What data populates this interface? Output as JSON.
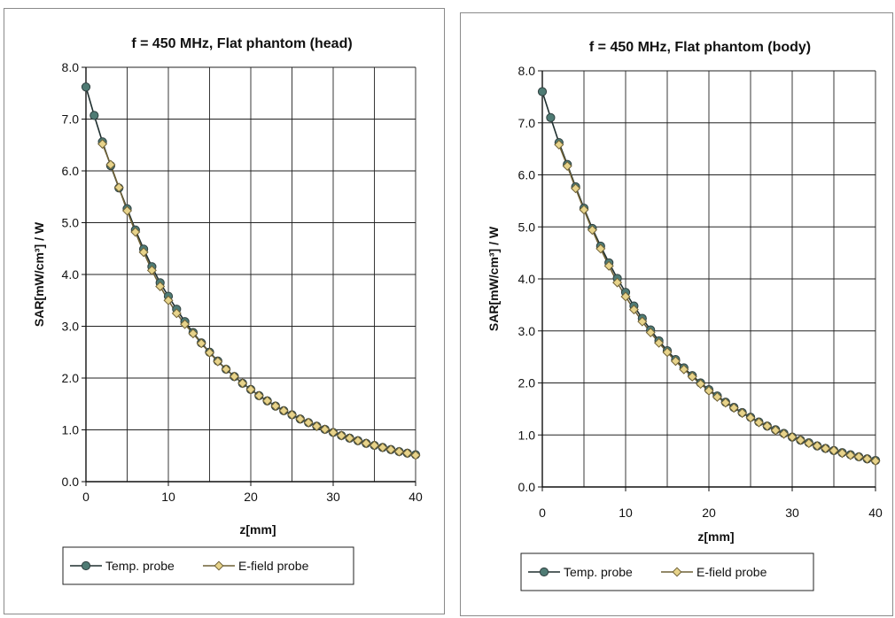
{
  "chart_data": [
    {
      "type": "line",
      "title": "f = 450 MHz, Flat phantom (head)",
      "xlabel": "z[mm]",
      "ylabel": "SAR[mW/cm³] / W",
      "xlim": [
        0,
        40
      ],
      "ylim": [
        0,
        8
      ],
      "xticks": [
        "0",
        "10",
        "20",
        "30",
        "40"
      ],
      "yticks": [
        "0.0",
        "1.0",
        "2.0",
        "3.0",
        "4.0",
        "5.0",
        "6.0",
        "7.0",
        "8.0"
      ],
      "grid": true,
      "legend_position": "bottom",
      "series": [
        {
          "name": "Temp. probe",
          "marker": "circle",
          "color": "#4f7b74",
          "x": [
            0,
            1,
            2,
            3,
            4,
            5,
            6,
            7,
            8,
            9,
            10,
            11,
            12,
            13,
            14,
            15,
            16,
            17,
            18,
            19,
            20,
            21,
            22,
            23,
            24,
            25,
            26,
            27,
            28,
            29,
            30,
            31,
            32,
            33,
            34,
            35,
            36,
            37,
            38,
            39,
            40
          ],
          "values": [
            7.62,
            7.07,
            6.56,
            6.1,
            5.67,
            5.27,
            4.86,
            4.49,
            4.15,
            3.84,
            3.58,
            3.33,
            3.09,
            2.88,
            2.68,
            2.5,
            2.33,
            2.17,
            2.03,
            1.9,
            1.78,
            1.66,
            1.56,
            1.46,
            1.37,
            1.29,
            1.21,
            1.14,
            1.07,
            1.01,
            0.95,
            0.89,
            0.84,
            0.79,
            0.74,
            0.7,
            0.66,
            0.62,
            0.58,
            0.55,
            0.52
          ]
        },
        {
          "name": "E-field probe",
          "marker": "diamond",
          "color": "#e7d38a",
          "x": [
            2,
            3,
            4,
            5,
            6,
            7,
            8,
            9,
            10,
            11,
            12,
            13,
            14,
            15,
            16,
            17,
            18,
            19,
            20,
            21,
            22,
            23,
            24,
            25,
            26,
            27,
            28,
            29,
            30,
            31,
            32,
            33,
            34,
            35,
            36,
            37,
            38,
            39,
            40
          ],
          "values": [
            6.52,
            6.12,
            5.68,
            5.23,
            4.82,
            4.43,
            4.08,
            3.77,
            3.5,
            3.25,
            3.04,
            2.86,
            2.67,
            2.49,
            2.32,
            2.17,
            2.03,
            1.9,
            1.78,
            1.66,
            1.56,
            1.46,
            1.37,
            1.29,
            1.21,
            1.14,
            1.07,
            1.01,
            0.95,
            0.89,
            0.84,
            0.79,
            0.74,
            0.7,
            0.66,
            0.62,
            0.58,
            0.55,
            0.51
          ]
        }
      ]
    },
    {
      "type": "line",
      "title": "f = 450 MHz, Flat phantom (body)",
      "xlabel": "z[mm]",
      "ylabel": "SAR[mW/cm³] / W",
      "xlim": [
        0,
        40
      ],
      "ylim": [
        0,
        8
      ],
      "xticks": [
        "0",
        "10",
        "20",
        "30",
        "40"
      ],
      "yticks": [
        "0.0",
        "1.0",
        "2.0",
        "3.0",
        "4.0",
        "5.0",
        "6.0",
        "7.0",
        "8.0"
      ],
      "grid": true,
      "legend_position": "bottom",
      "series": [
        {
          "name": "Temp. probe",
          "marker": "circle",
          "color": "#4f7b74",
          "x": [
            0,
            1,
            2,
            3,
            4,
            5,
            6,
            7,
            8,
            9,
            10,
            11,
            12,
            13,
            14,
            15,
            16,
            17,
            18,
            19,
            20,
            21,
            22,
            23,
            24,
            25,
            26,
            27,
            28,
            29,
            30,
            31,
            32,
            33,
            34,
            35,
            36,
            37,
            38,
            39,
            40
          ],
          "values": [
            7.6,
            7.1,
            6.62,
            6.2,
            5.77,
            5.36,
            4.97,
            4.63,
            4.31,
            4.01,
            3.74,
            3.48,
            3.24,
            3.02,
            2.81,
            2.62,
            2.45,
            2.29,
            2.14,
            2.0,
            1.87,
            1.75,
            1.63,
            1.53,
            1.43,
            1.34,
            1.25,
            1.17,
            1.1,
            1.03,
            0.96,
            0.9,
            0.85,
            0.79,
            0.74,
            0.7,
            0.66,
            0.62,
            0.58,
            0.54,
            0.51
          ]
        },
        {
          "name": "E-field probe",
          "marker": "diamond",
          "color": "#e7d38a",
          "x": [
            2,
            3,
            4,
            5,
            6,
            7,
            8,
            9,
            10,
            11,
            12,
            13,
            14,
            15,
            16,
            17,
            18,
            19,
            20,
            21,
            22,
            23,
            24,
            25,
            26,
            27,
            28,
            29,
            30,
            31,
            32,
            33,
            34,
            35,
            36,
            37,
            38,
            39,
            40
          ],
          "values": [
            6.58,
            6.17,
            5.74,
            5.33,
            4.94,
            4.58,
            4.25,
            3.93,
            3.66,
            3.41,
            3.18,
            2.97,
            2.77,
            2.59,
            2.42,
            2.26,
            2.12,
            1.98,
            1.85,
            1.73,
            1.62,
            1.52,
            1.42,
            1.33,
            1.24,
            1.17,
            1.09,
            1.02,
            0.96,
            0.9,
            0.84,
            0.79,
            0.74,
            0.7,
            0.65,
            0.61,
            0.58,
            0.54,
            0.5
          ]
        }
      ]
    }
  ]
}
